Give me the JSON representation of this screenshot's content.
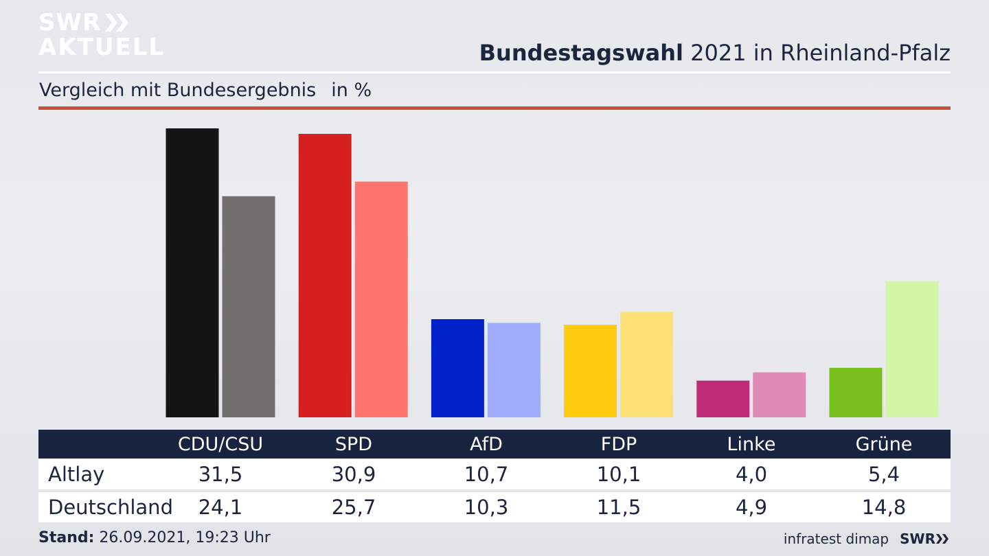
{
  "header": {
    "logo_line1": "SWR",
    "logo_line2": "AKTUELL",
    "title_bold": "Bundestagswahl",
    "title_rest": " 2021 in Rheinland-Pfalz",
    "subtitle": "Vergleich mit Bundesergebnis",
    "unit": "in %"
  },
  "chart_data": {
    "type": "bar",
    "title": "Bundestagswahl 2021 in Rheinland-Pfalz",
    "subtitle": "Vergleich mit Bundesergebnis",
    "unit": "in %",
    "categories": [
      "CDU/CSU",
      "SPD",
      "AfD",
      "FDP",
      "Linke",
      "Grüne"
    ],
    "series": [
      {
        "name": "Altlay",
        "values": [
          31.5,
          30.9,
          10.7,
          10.1,
          4.0,
          5.4
        ],
        "labels": [
          "31,5",
          "30,9",
          "10,7",
          "10,1",
          "4,0",
          "5,4"
        ]
      },
      {
        "name": "Deutschland",
        "values": [
          24.1,
          25.7,
          10.3,
          11.5,
          4.9,
          14.8
        ],
        "labels": [
          "24,1",
          "25,7",
          "10,3",
          "11,5",
          "4,9",
          "14,8"
        ]
      }
    ],
    "colors": {
      "primary": [
        "#141414",
        "#d61f1f",
        "#0022c8",
        "#fdcc0e",
        "#be2c78",
        "#77bd1e"
      ],
      "secondary": [
        "#72706e",
        "#ff756e",
        "#9fadfd",
        "#fde177",
        "#e08ab8",
        "#d3f5a8"
      ]
    },
    "ylim": [
      0,
      31.5
    ],
    "grid": false,
    "legend": "table-below"
  },
  "footer": {
    "stand_label": "Stand:",
    "stand_value": " 26.09.2021, 19:23 Uhr",
    "source": "infratest dimap",
    "brand": "SWR"
  }
}
